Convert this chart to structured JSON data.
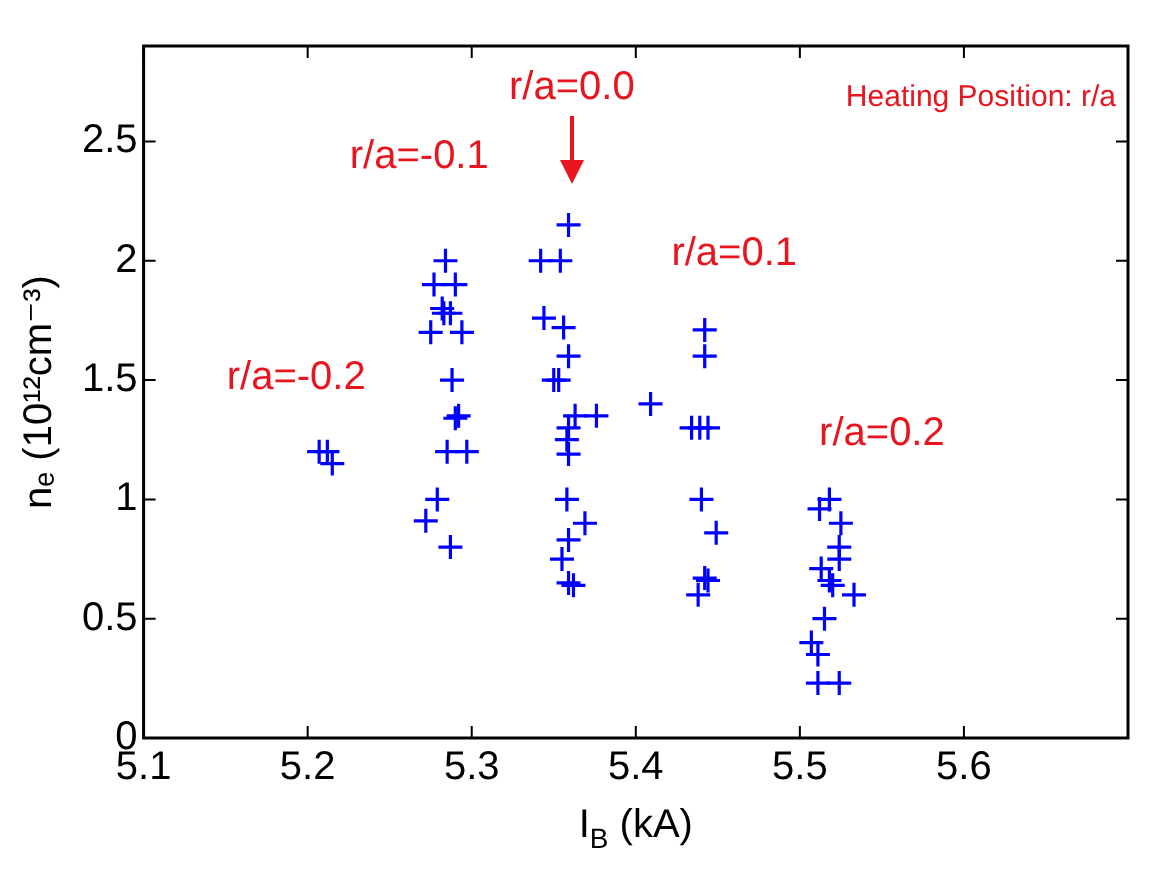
{
  "chart_data": {
    "type": "scatter",
    "xlabel": "I$_{B}$ (kA)",
    "ylabel": "nₑ (10¹²cm⁻³)",
    "xlim": [
      5.1,
      5.7
    ],
    "xticks": [
      5.1,
      5.2,
      5.3,
      5.4,
      5.5,
      5.6,
      {
        "value": 5.7,
        "label": null
      }
    ],
    "ylim": [
      0,
      2.9
    ],
    "yticks": [
      0,
      0.5,
      1,
      1.5,
      2,
      2.5
    ],
    "grid": false,
    "legend": false,
    "marker": "cross",
    "annotations": [
      "r/a=-0.2",
      "r/a=-0.1",
      "r/a=0.0",
      "r/a=0.1",
      "r/a=0.2",
      "Heating Position: r/a"
    ],
    "series": [
      {
        "color": "#0000ff",
        "x": [
          5.207,
          5.212,
          5.215,
          5.284,
          5.277,
          5.29,
          5.282,
          5.283,
          5.287,
          5.275,
          5.294,
          5.288,
          5.292,
          5.29,
          5.285,
          5.297,
          5.279,
          5.272,
          5.287,
          5.359,
          5.342,
          5.354,
          5.344,
          5.356,
          5.359,
          5.35,
          5.353,
          5.363,
          5.376,
          5.359,
          5.358,
          5.359,
          5.358,
          5.369,
          5.359,
          5.355,
          5.359,
          5.362,
          5.409,
          5.442,
          5.442,
          5.434,
          5.439,
          5.444,
          5.44,
          5.449,
          5.442,
          5.444,
          5.438,
          5.518,
          5.512,
          5.525,
          5.524,
          5.524,
          5.513,
          5.518,
          5.52,
          5.533,
          5.515,
          5.507,
          5.511,
          5.511,
          5.524
        ],
        "values": [
          1.2,
          1.2,
          1.15,
          2.0,
          1.9,
          1.9,
          1.8,
          1.78,
          1.78,
          1.7,
          1.7,
          1.5,
          1.35,
          1.34,
          1.2,
          1.2,
          1.0,
          0.91,
          0.8,
          2.15,
          2.0,
          2.0,
          1.76,
          1.72,
          1.6,
          1.5,
          1.5,
          1.35,
          1.35,
          1.3,
          1.25,
          1.19,
          1.0,
          0.9,
          0.83,
          0.75,
          0.65,
          0.64,
          1.4,
          1.71,
          1.6,
          1.3,
          1.3,
          1.3,
          1.0,
          0.86,
          0.67,
          0.66,
          0.6,
          1.0,
          0.96,
          0.9,
          0.8,
          0.75,
          0.71,
          0.66,
          0.64,
          0.6,
          0.5,
          0.4,
          0.35,
          0.23,
          0.23
        ]
      }
    ]
  }
}
